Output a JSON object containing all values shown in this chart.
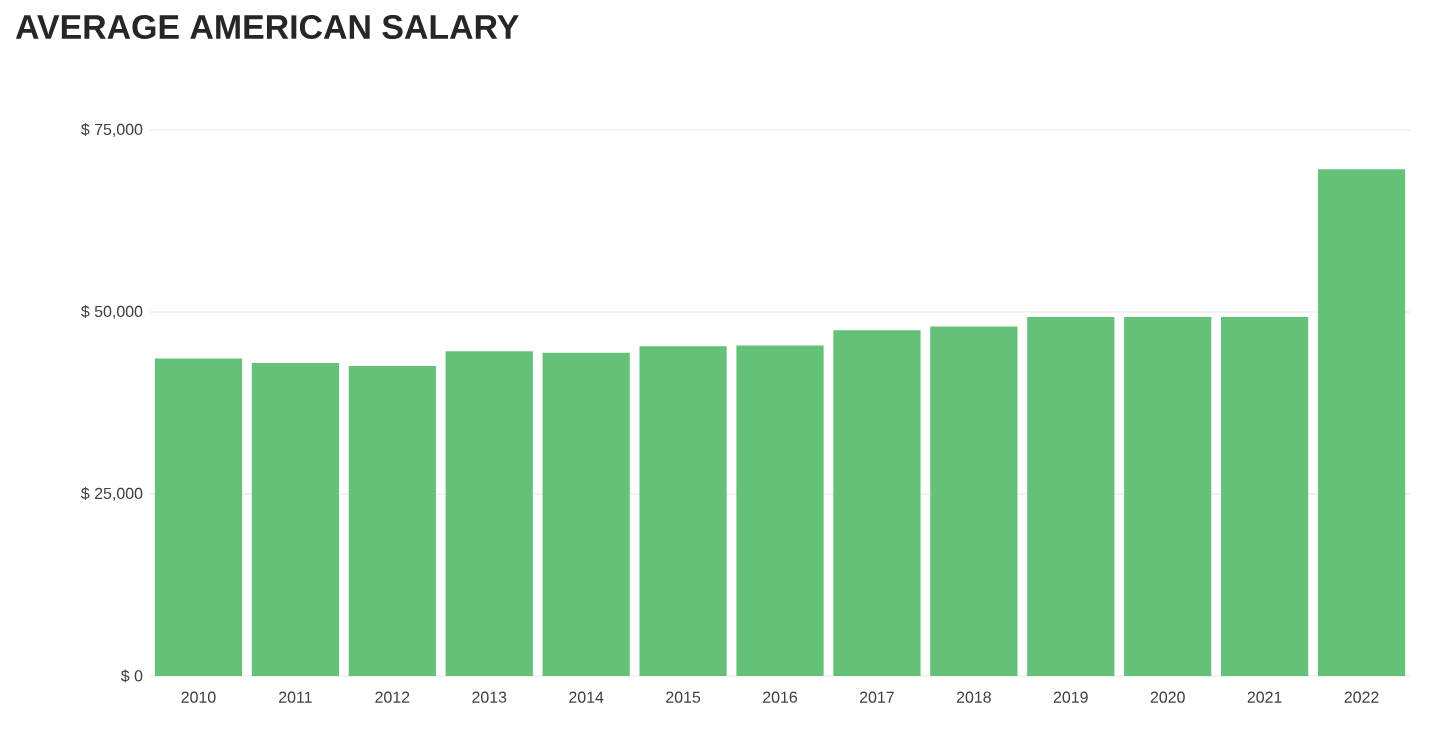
{
  "chart_data": {
    "type": "bar",
    "title": "AVERAGE AMERICAN SALARY",
    "categories": [
      "2010",
      "2011",
      "2012",
      "2013",
      "2014",
      "2015",
      "2016",
      "2017",
      "2018",
      "2019",
      "2020",
      "2021",
      "2022"
    ],
    "values": [
      43600,
      43000,
      42600,
      44600,
      44400,
      45300,
      45400,
      47500,
      48000,
      49300,
      49300,
      49300,
      69600
    ],
    "color": "#66c178",
    "ylim": [
      0,
      75000
    ],
    "yticks": [
      {
        "value": 0,
        "label": "$ 0"
      },
      {
        "value": 25000,
        "label": "$ 25,000"
      },
      {
        "value": 50000,
        "label": "$ 50,000"
      },
      {
        "value": 75000,
        "label": "$ 75,000"
      }
    ],
    "grid": "y"
  }
}
